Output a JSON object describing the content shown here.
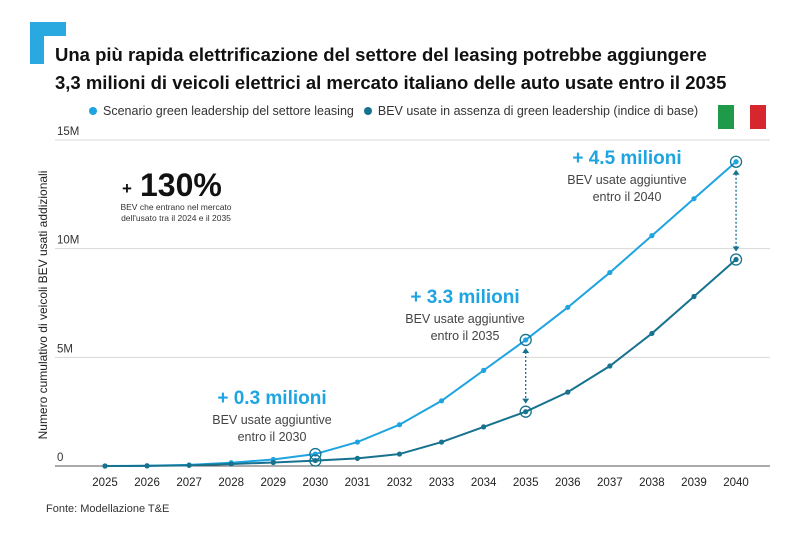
{
  "title_line1": "Una più rapida elettrificazione del settore del leasing potrebbe aggiungere",
  "title_line2": "3,3 milioni di veicoli elettrici al mercato italiano delle auto usate entro il 2035",
  "source": "Fonte: Modellazione T&E",
  "colors": {
    "accent": "#2aa8e0",
    "series_green": "#1ea4e0",
    "series_base": "#16728e",
    "flag_green": "#1f9a48",
    "flag_white": "#ffffff",
    "flag_red": "#d7262d"
  },
  "flag_icon": "italy-flag-icon",
  "chart_data": {
    "type": "line",
    "ylabel": "Numero cumulativo di veicoli BEV usati addizionali",
    "xlabel": "",
    "ylim": [
      0,
      15000000
    ],
    "y_ticks": [
      0,
      5000000,
      10000000,
      15000000
    ],
    "y_tick_labels": [
      "0",
      "5M",
      "10M",
      "15M"
    ],
    "grid": true,
    "legend_position": "top-left",
    "x": [
      "2025",
      "2026",
      "2027",
      "2028",
      "2029",
      "2030",
      "2031",
      "2032",
      "2033",
      "2034",
      "2035",
      "2036",
      "2037",
      "2038",
      "2039",
      "2040"
    ],
    "series": [
      {
        "name": "Scenario green leadership del settore leasing",
        "color": "#1ea4e0",
        "values": [
          0,
          10000,
          50000,
          150000,
          300000,
          550000,
          1100000,
          1900000,
          3000000,
          4400000,
          5800000,
          7300000,
          8900000,
          10600000,
          12300000,
          14000000
        ]
      },
      {
        "name": "BEV usate in assenza di green leadership (indice di base)",
        "color": "#16728e",
        "values": [
          0,
          5000,
          30000,
          90000,
          160000,
          250000,
          350000,
          550000,
          1100000,
          1800000,
          2500000,
          3400000,
          4600000,
          6100000,
          7800000,
          9500000
        ]
      }
    ],
    "annotations": {
      "headline_prefix": "+",
      "headline_value": "130%",
      "headline_note_line1": "BEV che entrano nel mercato",
      "headline_note_line2": "dell'usato tra il 2024 e il 2035",
      "callouts": [
        {
          "year": "2030",
          "headline": "+ 0.3 milioni",
          "sub1": "BEV usate aggiuntive",
          "sub2": "entro il 2030"
        },
        {
          "year": "2035",
          "headline": "+ 3.3 milioni",
          "sub1": "BEV usate aggiuntive",
          "sub2": "entro il 2035"
        },
        {
          "year": "2040",
          "headline": "+ 4.5 milioni",
          "sub1": "BEV usate aggiuntive",
          "sub2": "entro il 2040"
        }
      ]
    }
  }
}
